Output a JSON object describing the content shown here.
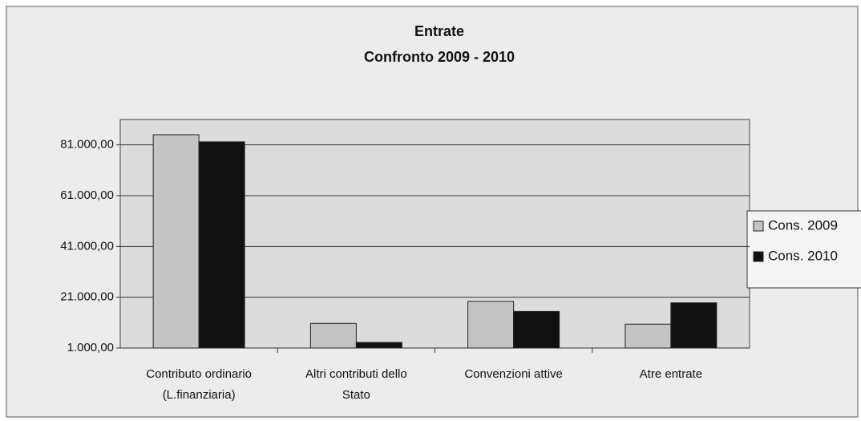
{
  "chart_data": {
    "type": "bar",
    "title": "Entrate",
    "subtitle": "Confronto 2009 - 2010",
    "categories": [
      "Contributo ordinario (L.finanziaria)",
      "Altri contributi dello Stato",
      "Convenzioni attive",
      "Atre entrate"
    ],
    "series": [
      {
        "name": "Cons. 2009",
        "color": "#c4c4c4",
        "values": [
          85000,
          10700,
          19400,
          10400
        ]
      },
      {
        "name": "Cons. 2010",
        "color": "#111111",
        "values": [
          82200,
          3200,
          15400,
          18800
        ]
      }
    ],
    "ylim": [
      1000,
      91000
    ],
    "yticks": [
      {
        "value": 1000,
        "label": "1.000,00"
      },
      {
        "value": 21000,
        "label": "21.000,00"
      },
      {
        "value": 41000,
        "label": "41.000,00"
      },
      {
        "value": 61000,
        "label": "61.000,00"
      },
      {
        "value": 81000,
        "label": "81.000,00"
      }
    ],
    "grid": true,
    "legend": "right"
  }
}
